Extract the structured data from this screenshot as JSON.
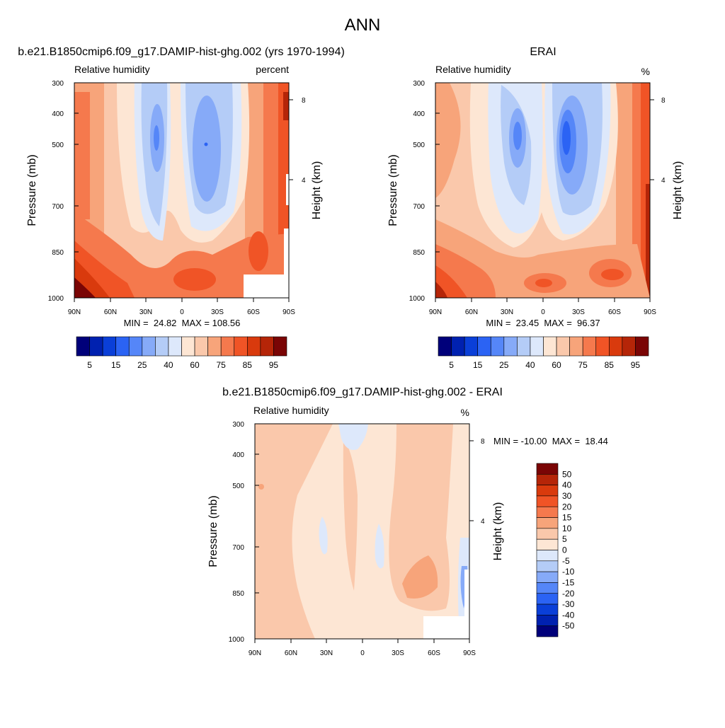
{
  "page": {
    "title": "ANN"
  },
  "axes_common": {
    "pressure_label": "Pressure (mb)",
    "height_label": "Height (km)",
    "pressure_ticks": [
      "300",
      "400",
      "500",
      "700",
      "850",
      "1000"
    ],
    "lat_ticks": [
      "90N",
      "60N",
      "30N",
      "0",
      "30S",
      "60S",
      "90S"
    ],
    "height_ticks": [
      "8",
      "4"
    ]
  },
  "panels": {
    "model": {
      "title": "b.e21.B1850cmip6.f09_g17.DAMIP-hist-ghg.002 (yrs 1970-1994)",
      "var_label": "Relative humidity",
      "units": "percent",
      "minmax": "MIN =  24.82  MAX = 108.56"
    },
    "obs": {
      "title": "ERAI",
      "var_label": "Relative humidity",
      "units": "%",
      "minmax": "MIN =  23.45  MAX =  96.37"
    },
    "diff": {
      "title": "b.e21.B1850cmip6.f09_g17.DAMIP-hist-ghg.002 - ERAI",
      "var_label": "Relative humidity",
      "units": "%",
      "minmax": "MIN = -10.00  MAX =  18.44"
    }
  },
  "colorbar_main": {
    "colors": [
      "#00007a",
      "#0021b0",
      "#0a3fd8",
      "#2b63f4",
      "#5586f8",
      "#86aaf8",
      "#b4ccf7",
      "#dde8fb",
      "#fde6d4",
      "#fac8ab",
      "#f7a47a",
      "#f5794d",
      "#f05426",
      "#d93a0d",
      "#b52508",
      "#7a0505"
    ],
    "labels": [
      "5",
      "15",
      "25",
      "40",
      "60",
      "75",
      "85",
      "95"
    ]
  },
  "colorbar_diff": {
    "colors": [
      "#7a0505",
      "#b52508",
      "#d93a0d",
      "#f05426",
      "#f5794d",
      "#f7a47a",
      "#fac8ab",
      "#fde6d4",
      "#dde8fb",
      "#b4ccf7",
      "#86aaf8",
      "#5586f8",
      "#2b63f4",
      "#0a3fd8",
      "#0021b0",
      "#00007a"
    ],
    "labels": [
      "50",
      "40",
      "30",
      "20",
      "15",
      "10",
      "5",
      "0",
      "-5",
      "-10",
      "-15",
      "-20",
      "-30",
      "-40",
      "-50"
    ]
  },
  "chart_data": [
    {
      "type": "heatmap",
      "title": "b.e21.B1850cmip6.f09_g17.DAMIP-hist-ghg.002 (yrs 1970-1994)",
      "xlabel": "",
      "ylabel": "Pressure (mb)",
      "y2label": "Height (km)",
      "x_ticks": [
        "90N",
        "60N",
        "30N",
        "0",
        "30S",
        "60S",
        "90S"
      ],
      "y_ticks": [
        300,
        400,
        500,
        700,
        850,
        1000
      ],
      "contour_levels": [
        5,
        10,
        15,
        20,
        25,
        30,
        40,
        50,
        60,
        65,
        70,
        75,
        80,
        85,
        90,
        95
      ],
      "min": 24.82,
      "max": 108.56,
      "units": "percent"
    },
    {
      "type": "heatmap",
      "title": "ERAI",
      "xlabel": "",
      "ylabel": "Pressure (mb)",
      "y2label": "Height (km)",
      "x_ticks": [
        "90N",
        "60N",
        "30N",
        "0",
        "30S",
        "60S",
        "90S"
      ],
      "y_ticks": [
        300,
        400,
        500,
        700,
        850,
        1000
      ],
      "contour_levels": [
        5,
        10,
        15,
        20,
        25,
        30,
        40,
        50,
        60,
        65,
        70,
        75,
        80,
        85,
        90,
        95
      ],
      "min": 23.45,
      "max": 96.37,
      "units": "%"
    },
    {
      "type": "heatmap",
      "title": "b.e21.B1850cmip6.f09_g17.DAMIP-hist-ghg.002 - ERAI",
      "xlabel": "",
      "ylabel": "Pressure (mb)",
      "y2label": "Height (km)",
      "x_ticks": [
        "90N",
        "60N",
        "30N",
        "0",
        "30S",
        "60S",
        "90S"
      ],
      "y_ticks": [
        300,
        400,
        500,
        700,
        850,
        1000
      ],
      "contour_levels": [
        -50,
        -40,
        -30,
        -20,
        -15,
        -10,
        -5,
        0,
        5,
        10,
        15,
        20,
        30,
        40,
        50
      ],
      "min": -10.0,
      "max": 18.44,
      "units": "%"
    }
  ]
}
